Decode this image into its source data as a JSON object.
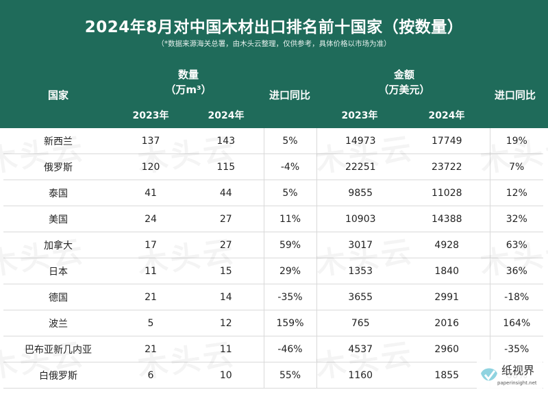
{
  "title": "2024年8月对中国木材出口排名前十国家（按数量）",
  "subtitle": "（*数据来源海关总署，由木头云整理，仅供参考，具体价格以市场为准）",
  "headers": {
    "country": "国家",
    "quantity": "数量",
    "quantity_unit": "（万m³）",
    "amount": "金额",
    "amount_unit": "（万美元）",
    "yoy": "进口同比",
    "year_2023": "2023年",
    "year_2024": "2024年"
  },
  "rows": [
    {
      "country": "新西兰",
      "q2023": "137",
      "q2024": "143",
      "qyoy": "5%",
      "a2023": "14973",
      "a2024": "17749",
      "ayoy": "19%"
    },
    {
      "country": "俄罗斯",
      "q2023": "120",
      "q2024": "115",
      "qyoy": "-4%",
      "a2023": "22251",
      "a2024": "23722",
      "ayoy": "7%"
    },
    {
      "country": "泰国",
      "q2023": "41",
      "q2024": "44",
      "qyoy": "5%",
      "a2023": "9855",
      "a2024": "11028",
      "ayoy": "12%"
    },
    {
      "country": "美国",
      "q2023": "24",
      "q2024": "27",
      "qyoy": "11%",
      "a2023": "10903",
      "a2024": "14388",
      "ayoy": "32%"
    },
    {
      "country": "加拿大",
      "q2023": "17",
      "q2024": "27",
      "qyoy": "59%",
      "a2023": "3017",
      "a2024": "4928",
      "ayoy": "63%"
    },
    {
      "country": "日本",
      "q2023": "11",
      "q2024": "15",
      "qyoy": "29%",
      "a2023": "1353",
      "a2024": "1840",
      "ayoy": "36%"
    },
    {
      "country": "德国",
      "q2023": "21",
      "q2024": "14",
      "qyoy": "-35%",
      "a2023": "3655",
      "a2024": "2991",
      "ayoy": "-18%"
    },
    {
      "country": "波兰",
      "q2023": "5",
      "q2024": "12",
      "qyoy": "159%",
      "a2023": "765",
      "a2024": "2016",
      "ayoy": "164%"
    },
    {
      "country": "巴布亚新几内亚",
      "q2023": "21",
      "q2024": "11",
      "qyoy": "-46%",
      "a2023": "4537",
      "a2024": "2960",
      "ayoy": "-35%"
    },
    {
      "country": "白俄罗斯",
      "q2023": "6",
      "q2024": "10",
      "qyoy": "55%",
      "a2023": "1160",
      "a2024": "1855",
      "ayoy": "60%"
    }
  ],
  "colors": {
    "header_bg": "#1f6b5a",
    "positive": "#e02424",
    "negative": "#3a8a3a"
  },
  "watermark": "木头云",
  "logo": {
    "text": "纸视界",
    "url": "paperinsight.net"
  }
}
